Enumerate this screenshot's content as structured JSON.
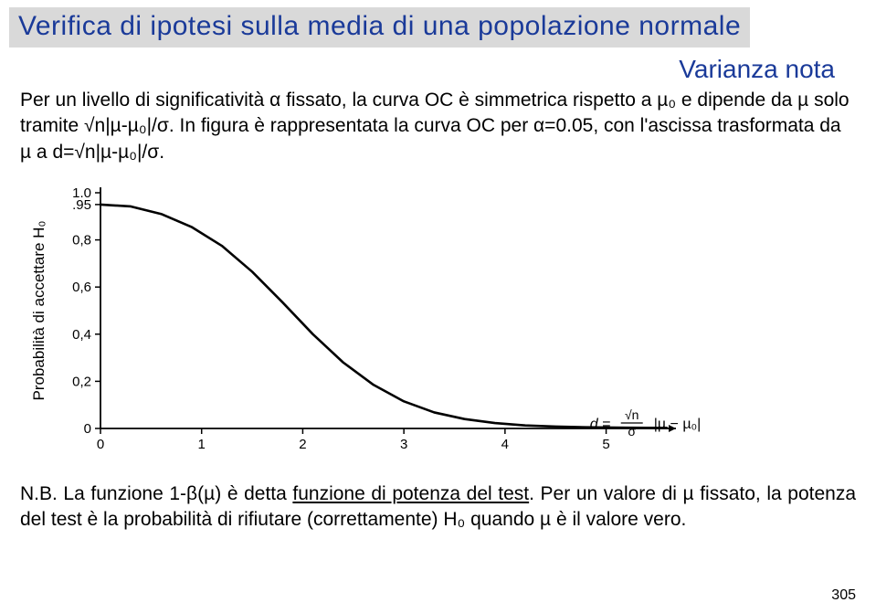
{
  "title": "Verifica di ipotesi sulla media di una popolazione normale",
  "variance_note": "Varianza nota",
  "paragraph": "Per un livello di significatività α fissato, la curva OC è simmetrica rispetto a µ₀ e dipende da µ solo tramite √n|µ-µ₀|/σ.\nIn figura è rappresentata la curva OC per α=0.05, con l'ascissa trasformata da µ a d=√n|µ-µ₀|/σ.",
  "chart": {
    "type": "line",
    "xlabel": "d = (√n / σ) |µ - µ₀|",
    "xlabel_plain": "d",
    "ylabel": "Probabilità di accettare H₀",
    "xlim": [
      0,
      5.6
    ],
    "ylim": [
      0,
      1.0
    ],
    "xticks": [
      0,
      1,
      2,
      3,
      4,
      5
    ],
    "yticks": [
      0,
      0.2,
      0.4,
      0.6,
      0.8,
      0.95,
      1.0
    ],
    "ytick_labels": [
      "0",
      "0,2",
      "0,4",
      "0,6",
      "0,8",
      ".95",
      "1.0"
    ],
    "curve_points": [
      {
        "x": 0.0,
        "y": 0.95
      },
      {
        "x": 0.3,
        "y": 0.942
      },
      {
        "x": 0.6,
        "y": 0.91
      },
      {
        "x": 0.9,
        "y": 0.855
      },
      {
        "x": 1.2,
        "y": 0.775
      },
      {
        "x": 1.5,
        "y": 0.665
      },
      {
        "x": 1.8,
        "y": 0.535
      },
      {
        "x": 2.1,
        "y": 0.4
      },
      {
        "x": 2.4,
        "y": 0.28
      },
      {
        "x": 2.7,
        "y": 0.185
      },
      {
        "x": 3.0,
        "y": 0.115
      },
      {
        "x": 3.3,
        "y": 0.068
      },
      {
        "x": 3.6,
        "y": 0.04
      },
      {
        "x": 3.9,
        "y": 0.023
      },
      {
        "x": 4.2,
        "y": 0.013
      },
      {
        "x": 4.5,
        "y": 0.008
      },
      {
        "x": 4.8,
        "y": 0.005
      },
      {
        "x": 5.2,
        "y": 0.003
      },
      {
        "x": 5.6,
        "y": 0.002
      }
    ],
    "axis_color": "#000000",
    "tick_color": "#000000",
    "curve_color": "#000000",
    "curve_width": 2.6,
    "bg_color": "#ffffff",
    "label_fontsize": 17,
    "tick_fontsize": 15
  },
  "footnote_prefix": "N.B. La funzione 1-β(µ) è detta ",
  "footnote_underlined": "funzione di potenza del test",
  "footnote_suffix": ". Per un valore di µ fissato, la potenza del test è la probabilità di rifiutare (correttamente) H₀ quando µ è il valore vero.",
  "page_number": "305"
}
